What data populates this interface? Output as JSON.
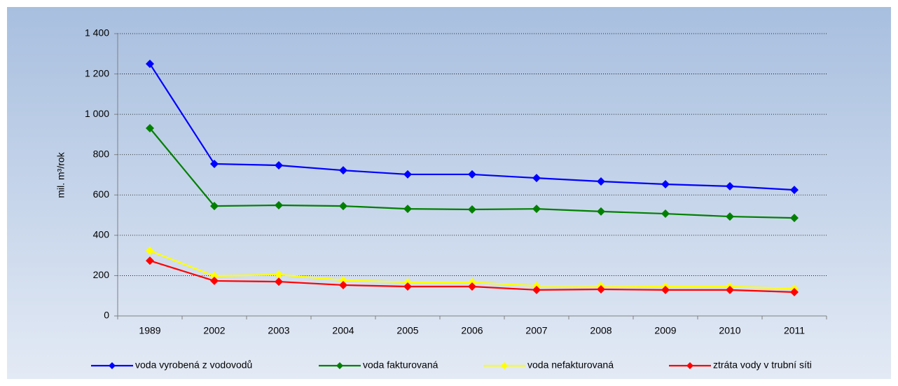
{
  "chart_data": {
    "type": "line",
    "y_label": "mil. m³/rok",
    "categories": [
      "1989",
      "2002",
      "2003",
      "2004",
      "2005",
      "2006",
      "2007",
      "2008",
      "2009",
      "2010",
      "2011"
    ],
    "series": [
      {
        "name": "voda vyrobená z vodovodů",
        "color": "#0000ff",
        "values": [
          1250,
          754,
          747,
          722,
          702,
          702,
          684,
          667,
          653,
          643,
          625
        ]
      },
      {
        "name": "voda fakturovaná",
        "color": "#008000",
        "values": [
          931,
          545,
          549,
          545,
          531,
          528,
          531,
          518,
          507,
          493,
          486
        ]
      },
      {
        "name": "voda nefakturovaná",
        "color": "#ffff00",
        "values": [
          323,
          198,
          205,
          177,
          167,
          167,
          149,
          149,
          146,
          146,
          135
        ]
      },
      {
        "name": "ztráta vody v trubní síti",
        "color": "#ff0000",
        "values": [
          274,
          174,
          170,
          153,
          146,
          146,
          129,
          132,
          129,
          129,
          118
        ]
      }
    ],
    "ylim": [
      0,
      1400
    ],
    "yticks": [
      0,
      200,
      400,
      600,
      800,
      {
        "value": 1000,
        "label": "1 000"
      },
      {
        "value": 1200,
        "label": "1 200"
      },
      {
        "value": 1400,
        "label": "1 400"
      }
    ],
    "grid": true,
    "legend": "bottom"
  }
}
